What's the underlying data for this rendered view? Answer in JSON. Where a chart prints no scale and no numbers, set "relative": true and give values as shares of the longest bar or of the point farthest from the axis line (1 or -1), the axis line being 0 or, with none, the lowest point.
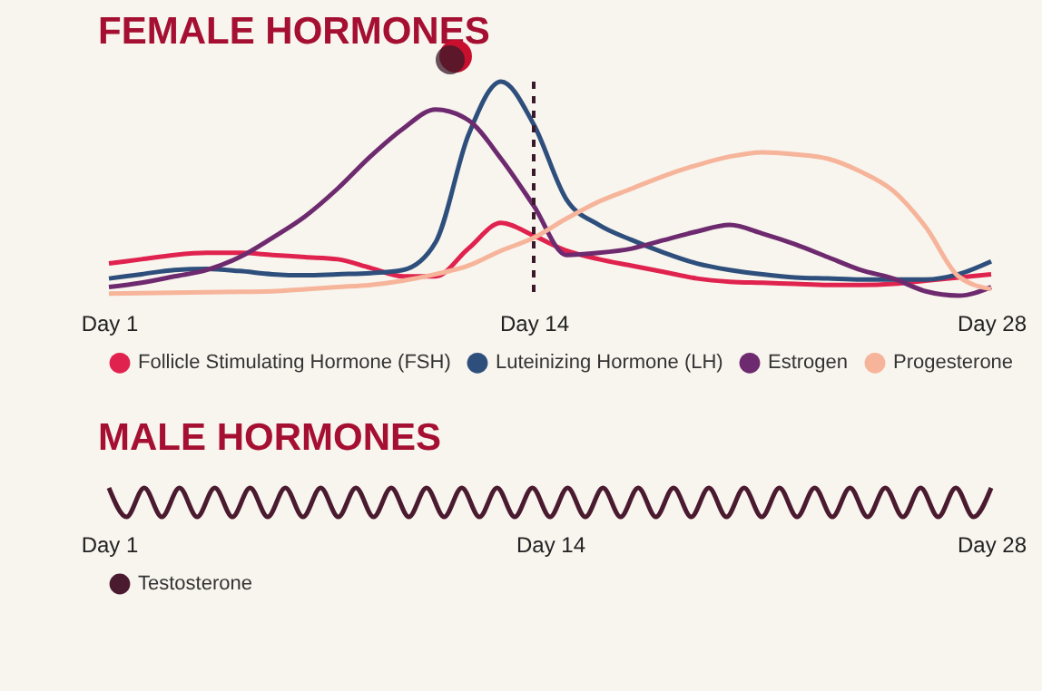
{
  "chart_data": [
    {
      "type": "line",
      "title": "FEMALE HORMONES",
      "relative": true,
      "legend": "bottom",
      "categories": [
        "Day 1",
        null,
        null,
        null,
        null,
        null,
        null,
        null,
        null,
        null,
        null,
        null,
        null,
        "Day 14",
        null,
        null,
        null,
        null,
        null,
        null,
        null,
        null,
        null,
        null,
        null,
        null,
        null,
        "Day 28"
      ],
      "ref_lines": [
        {
          "axis": "x",
          "value": "Day 14",
          "color": "#3a1a2a",
          "line_style": "dashed"
        }
      ],
      "series": [
        {
          "name": "Follicle Stimulating Hormone (FSH)",
          "color": "#e0234e",
          "values": [
            0.15,
            0.17,
            0.19,
            0.2,
            0.2,
            0.19,
            0.18,
            0.17,
            0.13,
            0.09,
            0.09,
            0.22,
            0.34,
            0.28,
            0.21,
            0.17,
            0.14,
            0.11,
            0.08,
            0.065,
            0.06,
            0.055,
            0.05,
            0.05,
            0.055,
            0.07,
            0.085,
            0.1
          ]
        },
        {
          "name": "Luteinizing Hormone (LH)",
          "color": "#2e4f7c",
          "values": [
            0.08,
            0.1,
            0.12,
            0.125,
            0.115,
            0.1,
            0.095,
            0.1,
            0.105,
            0.12,
            0.25,
            0.75,
            1,
            0.8,
            0.45,
            0.33,
            0.26,
            0.2,
            0.15,
            0.12,
            0.1,
            0.085,
            0.08,
            0.075,
            0.075,
            0.075,
            0.1,
            0.16
          ]
        },
        {
          "name": "Estrogen",
          "color": "#6e2a6e",
          "values": [
            0.04,
            0.06,
            0.09,
            0.12,
            0.18,
            0.27,
            0.37,
            0.5,
            0.65,
            0.78,
            0.87,
            0.82,
            0.64,
            0.42,
            0.19,
            0.2,
            0.22,
            0.26,
            0.3,
            0.33,
            0.29,
            0.24,
            0.18,
            0.12,
            0.08,
            0.02,
            0,
            0.04
          ]
        },
        {
          "name": "Progesterone",
          "color": "#f6b49a",
          "values": [
            0.01,
            0.012,
            0.014,
            0.016,
            0.018,
            0.02,
            0.03,
            0.04,
            0.05,
            0.07,
            0.1,
            0.14,
            0.21,
            0.27,
            0.36,
            0.44,
            0.5,
            0.56,
            0.61,
            0.65,
            0.67,
            0.66,
            0.64,
            0.58,
            0.49,
            0.32,
            0.09,
            0.03
          ]
        }
      ]
    },
    {
      "type": "line",
      "title": "MALE HORMONES",
      "relative": true,
      "legend": "bottom left",
      "categories": [
        "Day 1",
        null,
        null,
        null,
        null,
        null,
        null,
        null,
        null,
        null,
        null,
        null,
        null,
        null,
        null,
        null,
        null,
        null,
        null,
        null,
        null,
        null,
        null,
        null,
        null,
        "Day 14",
        null,
        null,
        null,
        null,
        null,
        null,
        null,
        null,
        null,
        null,
        null,
        null,
        null,
        null,
        null,
        null,
        null,
        null,
        null,
        null,
        null,
        null,
        null,
        null,
        "Day 28"
      ],
      "series": [
        {
          "name": "Testosterone",
          "color": "#4a1a2e",
          "values": [
            1,
            0,
            1,
            0,
            1,
            0,
            1,
            0,
            1,
            0,
            1,
            0,
            1,
            0,
            1,
            0,
            1,
            0,
            1,
            0,
            1,
            0,
            1,
            0,
            1,
            0,
            1,
            0,
            1,
            0,
            1,
            0,
            1,
            0,
            1,
            0,
            1,
            0,
            1,
            0,
            1,
            0,
            1,
            0,
            1,
            0,
            1,
            0,
            1,
            0,
            1
          ]
        }
      ]
    }
  ]
}
